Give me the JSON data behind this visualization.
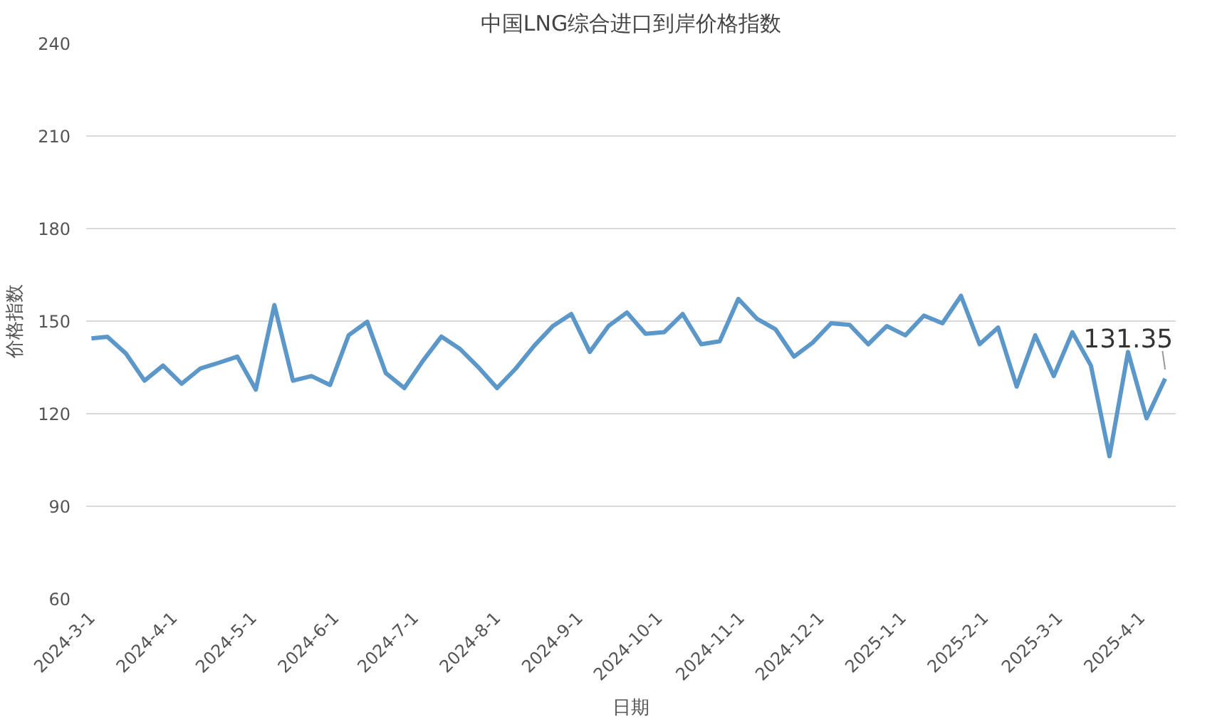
{
  "chart_data": {
    "type": "line",
    "title": "中国LNG综合进口到岸价格指数",
    "xlabel": "日期",
    "ylabel": "价格指数",
    "x": [
      "2024-03-01",
      "2024-03-07",
      "2024-03-14",
      "2024-03-21",
      "2024-03-28",
      "2024-04-04",
      "2024-04-11",
      "2024-04-18",
      "2024-04-25",
      "2024-05-02",
      "2024-05-09",
      "2024-05-16",
      "2024-05-23",
      "2024-05-30",
      "2024-06-06",
      "2024-06-13",
      "2024-06-20",
      "2024-06-27",
      "2024-07-04",
      "2024-07-11",
      "2024-07-18",
      "2024-07-25",
      "2024-08-01",
      "2024-08-08",
      "2024-08-15",
      "2024-08-22",
      "2024-08-29",
      "2024-09-05",
      "2024-09-12",
      "2024-09-19",
      "2024-09-26",
      "2024-10-03",
      "2024-10-10",
      "2024-10-17",
      "2024-10-24",
      "2024-10-31",
      "2024-11-07",
      "2024-11-14",
      "2024-11-21",
      "2024-11-28",
      "2024-12-05",
      "2024-12-12",
      "2024-12-19",
      "2024-12-26",
      "2025-01-02",
      "2025-01-09",
      "2025-01-16",
      "2025-01-23",
      "2025-01-30",
      "2025-02-06",
      "2025-02-13",
      "2025-02-20",
      "2025-02-27",
      "2025-03-06",
      "2025-03-13",
      "2025-03-20",
      "2025-03-27",
      "2025-04-03",
      "2025-04-10"
    ],
    "series": [
      {
        "color": "#5b97c8",
        "values": [
          144.4,
          144.9,
          139.5,
          130.7,
          135.6,
          129.7,
          134.6,
          136.5,
          138.5,
          127.8,
          155.2,
          130.7,
          132.2,
          129.3,
          145.4,
          149.8,
          133.2,
          128.3,
          137.1,
          145,
          141,
          135,
          128.3,
          134.6,
          142,
          148.4,
          152.3,
          140,
          148.4,
          152.8,
          145.9,
          146.4,
          152.3,
          142.5,
          143.5,
          157.2,
          150.8,
          147.4,
          138.5,
          143,
          149.3,
          148.8,
          142.5,
          148.4,
          145.4,
          151.8,
          149.3,
          158.2,
          142.5,
          147.9,
          128.8,
          145.4,
          132.2,
          146.4,
          135.6,
          106.2,
          140,
          118.5,
          131.35
        ]
      }
    ],
    "annotations": [
      {
        "text": "131.35",
        "x": "2025-04-10",
        "y": 131.35
      }
    ],
    "xlim": [
      "2024-02-28",
      "2025-04-14"
    ],
    "xticks": [
      {
        "value": "2024-03-01",
        "label": "2024-3-1"
      },
      {
        "value": "2024-04-01",
        "label": "2024-4-1"
      },
      {
        "value": "2024-05-01",
        "label": "2024-5-1"
      },
      {
        "value": "2024-06-01",
        "label": "2024-6-1"
      },
      {
        "value": "2024-07-01",
        "label": "2024-7-1"
      },
      {
        "value": "2024-08-01",
        "label": "2024-8-1"
      },
      {
        "value": "2024-09-01",
        "label": "2024-9-1"
      },
      {
        "value": "2024-10-01",
        "label": "2024-10-1"
      },
      {
        "value": "2024-11-01",
        "label": "2024-11-1"
      },
      {
        "value": "2024-12-01",
        "label": "2024-12-1"
      },
      {
        "value": "2025-01-01",
        "label": "2025-1-1"
      },
      {
        "value": "2025-02-01",
        "label": "2025-2-1"
      },
      {
        "value": "2025-03-01",
        "label": "2025-3-1"
      },
      {
        "value": "2025-04-01",
        "label": "2025-4-1"
      }
    ],
    "ylim": [
      60,
      240
    ],
    "yticks": [
      60,
      90,
      120,
      150,
      180,
      210,
      240
    ],
    "grid": "y",
    "marker": "none",
    "line_style": "solid"
  }
}
